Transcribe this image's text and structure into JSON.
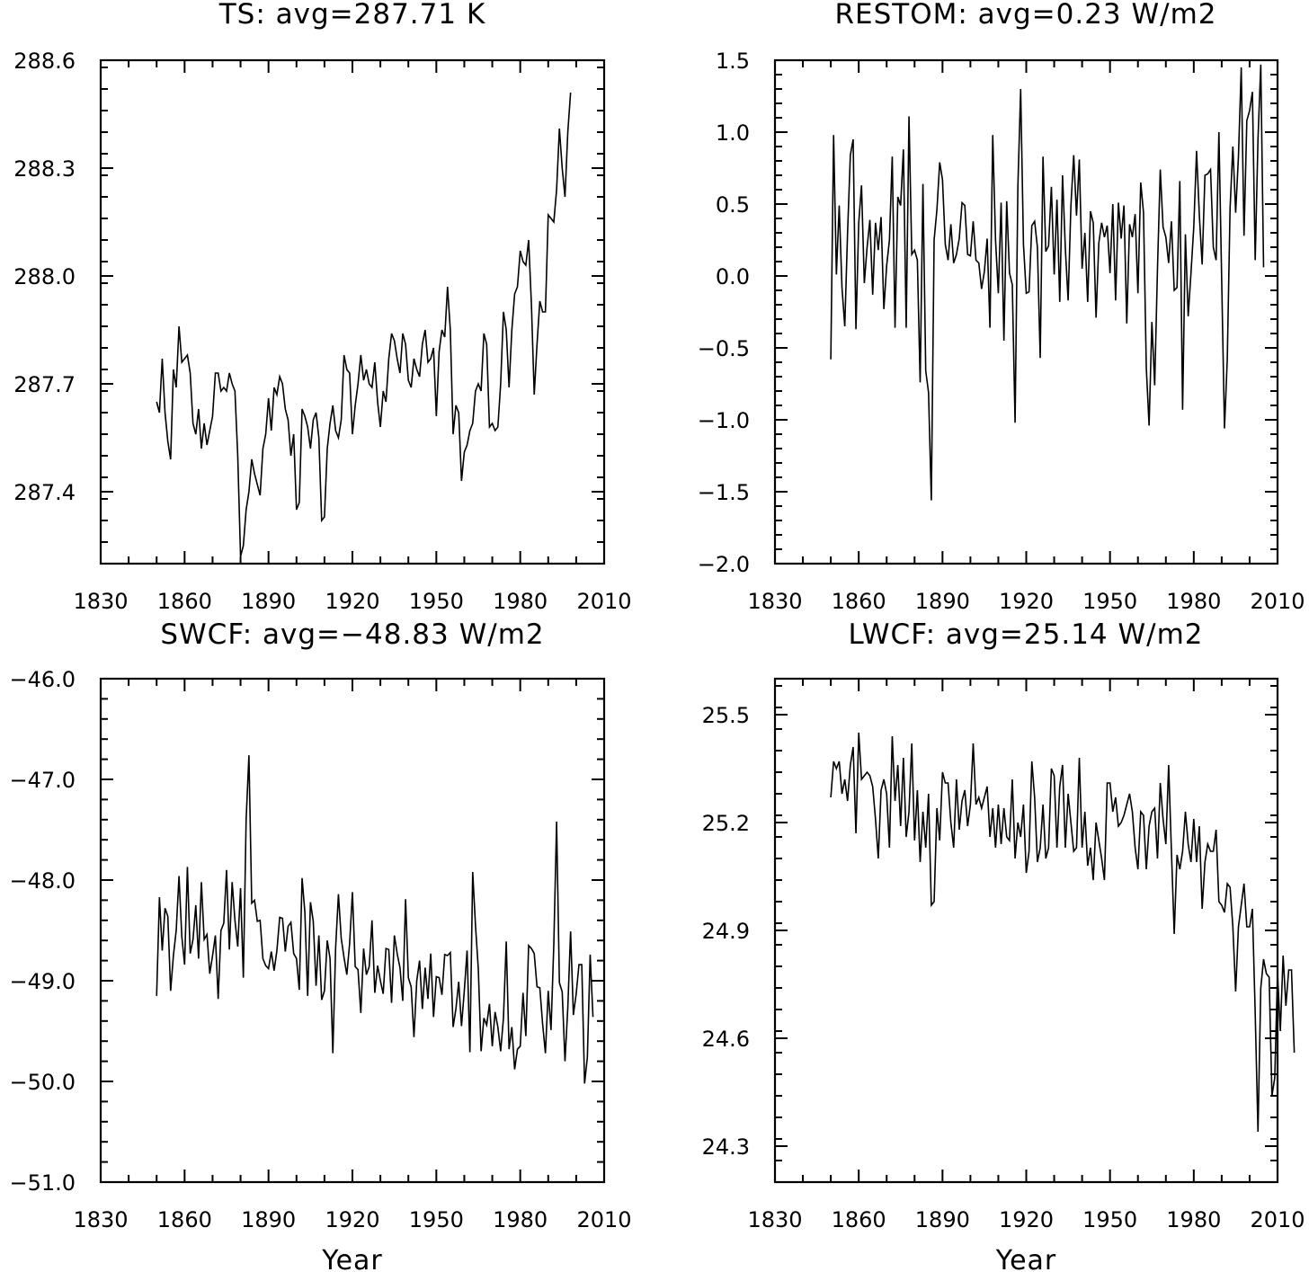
{
  "chart_data": [
    {
      "type": "line",
      "title": "TS: avg=287.71 K",
      "xlabel": "",
      "ylabel": "",
      "xlim": [
        1830,
        2010
      ],
      "ylim": [
        287.2,
        288.6
      ],
      "xticks": [
        1830,
        1860,
        1890,
        1920,
        1950,
        1980,
        2010
      ],
      "xtick_labels": [
        "1830",
        "1860",
        "1890",
        "1920",
        "1950",
        "1980",
        "2010"
      ],
      "yticks": [
        287.4,
        287.7,
        288.0,
        288.3,
        288.6
      ],
      "ytick_labels": [
        "287.4",
        "287.7",
        "288.0",
        "288.3",
        "288.6"
      ],
      "grid": false,
      "x_start": 1850,
      "x_step": 1,
      "values": [
        287.65,
        287.62,
        287.77,
        287.62,
        287.54,
        287.49,
        287.74,
        287.69,
        287.86,
        287.76,
        287.77,
        287.78,
        287.73,
        287.59,
        287.56,
        287.63,
        287.52,
        287.59,
        287.53,
        287.57,
        287.61,
        287.73,
        287.73,
        287.68,
        287.69,
        287.68,
        287.73,
        287.7,
        287.68,
        287.5,
        287.22,
        287.25,
        287.35,
        287.4,
        287.49,
        287.45,
        287.42,
        287.39,
        287.52,
        287.56,
        287.66,
        287.57,
        287.69,
        287.67,
        287.72,
        287.7,
        287.63,
        287.6,
        287.5,
        287.56,
        287.35,
        287.37,
        287.63,
        287.61,
        287.58,
        287.52,
        287.6,
        287.62,
        287.55,
        287.32,
        287.33,
        287.52,
        287.59,
        287.64,
        287.57,
        287.55,
        287.6,
        287.78,
        287.74,
        287.73,
        287.56,
        287.64,
        287.7,
        287.78,
        287.71,
        287.74,
        287.7,
        287.69,
        287.76,
        287.65,
        287.58,
        287.68,
        287.65,
        287.77,
        287.84,
        287.82,
        287.77,
        287.73,
        287.84,
        287.81,
        287.71,
        287.69,
        287.77,
        287.74,
        287.72,
        287.81,
        287.85,
        287.76,
        287.77,
        287.8,
        287.61,
        287.79,
        287.85,
        287.83,
        287.97,
        287.85,
        287.56,
        287.64,
        287.62,
        287.43,
        287.51,
        287.53,
        287.57,
        287.59,
        287.68,
        287.7,
        287.68,
        287.84,
        287.81,
        287.58,
        287.59,
        287.57,
        287.58,
        287.7,
        287.9,
        287.85,
        287.69,
        287.85,
        287.95,
        287.97,
        288.07,
        288.04,
        288.03,
        288.1,
        287.92,
        287.67,
        287.81,
        287.93,
        287.9,
        287.9,
        288.17,
        288.16,
        288.15,
        288.24,
        288.41,
        288.3,
        288.22,
        288.4,
        288.51
      ]
    },
    {
      "type": "line",
      "title": "RESTOM: avg=0.23 W/m2",
      "xlabel": "",
      "ylabel": "",
      "xlim": [
        1830,
        2010
      ],
      "ylim": [
        -2.0,
        1.5
      ],
      "xticks": [
        1830,
        1860,
        1890,
        1920,
        1950,
        1980,
        2010
      ],
      "xtick_labels": [
        "1830",
        "1860",
        "1890",
        "1920",
        "1950",
        "1980",
        "2010"
      ],
      "yticks": [
        -2.0,
        -1.5,
        -1.0,
        -0.5,
        0.0,
        0.5,
        1.0,
        1.5
      ],
      "ytick_labels": [
        "−2.0",
        "−1.5",
        "−1.0",
        "−0.5",
        "0.0",
        "0.5",
        "1.0",
        "1.5"
      ],
      "grid": false,
      "x_start": 1850,
      "x_step": 1,
      "values": [
        -0.58,
        0.98,
        0.01,
        0.49,
        -0.08,
        -0.35,
        0.3,
        0.84,
        0.95,
        -0.37,
        0.37,
        0.63,
        -0.05,
        0.2,
        0.39,
        -0.13,
        0.37,
        0.18,
        0.41,
        -0.23,
        0.07,
        0.25,
        0.83,
        -0.36,
        0.55,
        0.49,
        0.88,
        -0.36,
        1.11,
        0.15,
        0.18,
        0.11,
        -0.74,
        0.64,
        -0.66,
        -0.81,
        -1.56,
        0.25,
        0.46,
        0.79,
        0.67,
        0.22,
        0.11,
        0.36,
        0.09,
        0.15,
        0.26,
        0.51,
        0.49,
        0.15,
        0.14,
        0.38,
        0.11,
        0.09,
        -0.09,
        0.03,
        0.26,
        -0.36,
        0.98,
        0.25,
        -0.12,
        0.51,
        -0.45,
        0.52,
        0.02,
        -0.06,
        -1.02,
        0.62,
        1.3,
        0.22,
        -0.12,
        -0.11,
        0.35,
        0.38,
        0.2,
        -0.57,
        0.83,
        0.17,
        0.21,
        0.62,
        0.01,
        0.53,
        -0.18,
        0.7,
        0.19,
        -0.17,
        0.49,
        0.84,
        0.42,
        0.81,
        0.05,
        0.3,
        -0.18,
        0.45,
        0.37,
        -0.29,
        0.23,
        0.37,
        0.27,
        0.35,
        0.02,
        0.5,
        -0.17,
        0.51,
        0.26,
        0.49,
        -0.33,
        0.36,
        0.27,
        0.43,
        -0.12,
        0.65,
        0.44,
        -0.64,
        -1.04,
        -0.32,
        -0.76,
        0.05,
        0.74,
        0.34,
        0.27,
        0.09,
        0.38,
        -0.1,
        -0.08,
        0.66,
        -0.93,
        0.29,
        -0.28,
        0.02,
        0.34,
        0.87,
        0.42,
        0.08,
        0.7,
        0.71,
        0.74,
        0.2,
        0.11,
        1.0,
        -0.03,
        -1.06,
        -0.58,
        0.47,
        0.9,
        0.44,
        0.83,
        1.45,
        0.28,
        1.08,
        1.15,
        1.28,
        0.11,
        0.95,
        1.47,
        0.06
      ]
    },
    {
      "type": "line",
      "title": "SWCF: avg=−48.83 W/m2",
      "xlabel": "Year",
      "ylabel": "",
      "xlim": [
        1830,
        2010
      ],
      "ylim": [
        -51.0,
        -46.0
      ],
      "xticks": [
        1830,
        1860,
        1890,
        1920,
        1950,
        1980,
        2010
      ],
      "xtick_labels": [
        "1830",
        "1860",
        "1890",
        "1920",
        "1950",
        "1980",
        "2010"
      ],
      "yticks": [
        -51.0,
        -50.0,
        -49.0,
        -48.0,
        -47.0,
        -46.0
      ],
      "ytick_labels": [
        "−51.0",
        "−50.0",
        "−49.0",
        "−48.0",
        "−47.0",
        "−46.0"
      ],
      "grid": false,
      "x_start": 1850,
      "x_step": 1,
      "values": [
        -49.15,
        -48.17,
        -48.7,
        -48.28,
        -48.36,
        -49.1,
        -48.75,
        -48.5,
        -47.96,
        -48.56,
        -48.84,
        -47.87,
        -48.73,
        -48.59,
        -48.25,
        -48.78,
        -48.02,
        -48.59,
        -48.54,
        -48.93,
        -48.75,
        -48.55,
        -49.18,
        -48.5,
        -48.43,
        -47.9,
        -48.69,
        -48.02,
        -48.4,
        -48.66,
        -48.08,
        -48.97,
        -47.4,
        -46.76,
        -48.23,
        -48.2,
        -48.41,
        -48.4,
        -48.78,
        -48.85,
        -48.88,
        -48.71,
        -48.9,
        -48.7,
        -48.37,
        -48.38,
        -48.71,
        -48.46,
        -48.42,
        -48.73,
        -48.78,
        -49.09,
        -47.98,
        -48.32,
        -49.15,
        -48.22,
        -48.41,
        -49.05,
        -48.55,
        -49.19,
        -49.1,
        -48.6,
        -48.78,
        -49.72,
        -48.67,
        -48.14,
        -48.58,
        -48.77,
        -48.94,
        -48.63,
        -48.12,
        -48.86,
        -48.89,
        -49.32,
        -48.68,
        -48.94,
        -48.86,
        -48.4,
        -49.12,
        -48.85,
        -49.0,
        -49.13,
        -48.68,
        -48.69,
        -49.22,
        -48.55,
        -48.73,
        -48.87,
        -49.2,
        -48.19,
        -48.97,
        -49.06,
        -49.56,
        -49.0,
        -48.8,
        -49.28,
        -48.87,
        -49.18,
        -48.73,
        -49.36,
        -48.96,
        -48.97,
        -49.14,
        -48.74,
        -48.75,
        -48.72,
        -49.46,
        -49.28,
        -49.01,
        -49.45,
        -49.1,
        -48.7,
        -49.71,
        -47.92,
        -48.45,
        -48.88,
        -49.7,
        -49.37,
        -49.44,
        -49.23,
        -49.65,
        -49.31,
        -49.46,
        -49.7,
        -49.37,
        -48.61,
        -49.68,
        -49.46,
        -49.88,
        -49.68,
        -49.65,
        -49.12,
        -49.55,
        -48.65,
        -48.68,
        -48.73,
        -49.06,
        -49.07,
        -49.43,
        -49.72,
        -49.1,
        -49.49,
        -48.64,
        -47.42,
        -49.02,
        -49.11,
        -49.8,
        -49.27,
        -48.51,
        -49.34,
        -49.13,
        -48.84,
        -48.84,
        -50.02,
        -49.76,
        -48.74,
        -49.36
      ]
    },
    {
      "type": "line",
      "title": "LWCF: avg=25.14 W/m2",
      "xlabel": "Year",
      "ylabel": "",
      "xlim": [
        1830,
        2010
      ],
      "ylim": [
        24.2,
        25.6
      ],
      "xticks": [
        1830,
        1860,
        1890,
        1920,
        1950,
        1980,
        2010
      ],
      "xtick_labels": [
        "1830",
        "1860",
        "1890",
        "1920",
        "1950",
        "1980",
        "2010"
      ],
      "yticks": [
        24.3,
        24.6,
        24.9,
        25.2,
        25.5
      ],
      "ytick_labels": [
        "24.3",
        "24.6",
        "24.9",
        "25.2",
        "25.5"
      ],
      "grid": false,
      "x_start": 1850,
      "x_step": 1,
      "values": [
        25.27,
        25.37,
        25.35,
        25.37,
        25.28,
        25.32,
        25.26,
        25.36,
        25.41,
        25.17,
        25.45,
        25.32,
        25.33,
        25.34,
        25.33,
        25.3,
        25.21,
        25.1,
        25.29,
        25.32,
        25.28,
        25.13,
        25.44,
        25.26,
        25.36,
        25.19,
        25.38,
        25.16,
        25.23,
        25.42,
        25.15,
        25.29,
        25.09,
        25.23,
        25.13,
        25.28,
        24.97,
        24.98,
        25.24,
        25.15,
        25.34,
        25.31,
        25.31,
        25.2,
        25.13,
        25.32,
        25.18,
        25.26,
        25.29,
        25.19,
        25.25,
        25.42,
        25.25,
        25.27,
        25.24,
        25.27,
        25.3,
        25.16,
        25.24,
        25.13,
        25.25,
        25.14,
        25.24,
        25.16,
        25.15,
        25.32,
        25.1,
        25.2,
        25.16,
        25.25,
        25.06,
        25.12,
        25.37,
        25.27,
        25.09,
        25.13,
        25.25,
        25.1,
        25.13,
        25.35,
        25.33,
        25.13,
        25.3,
        25.36,
        25.13,
        25.28,
        25.2,
        25.12,
        25.13,
        25.38,
        25.13,
        25.23,
        25.08,
        25.13,
        25.04,
        25.2,
        25.15,
        25.1,
        25.04,
        25.31,
        25.31,
        25.23,
        25.27,
        25.19,
        25.2,
        25.22,
        25.25,
        25.28,
        25.23,
        25.13,
        25.07,
        25.23,
        25.22,
        25.07,
        25.19,
        25.23,
        25.24,
        25.1,
        25.31,
        25.21,
        25.14,
        25.36,
        25.12,
        24.89,
        25.11,
        25.07,
        25.12,
        25.23,
        25.14,
        25.09,
        25.21,
        25.09,
        25.19,
        24.96,
        25.09,
        25.14,
        25.12,
        25.12,
        25.18,
        24.98,
        24.97,
        24.95,
        25.03,
        25.02,
        24.91,
        24.73,
        24.91,
        24.97,
        25.03,
        24.91,
        24.91,
        24.96,
        24.67,
        24.34,
        24.74,
        24.82,
        24.78,
        24.77,
        24.44,
        24.49,
        24.78,
        24.62,
        24.83,
        24.69,
        24.79,
        24.79,
        24.56
      ]
    }
  ]
}
